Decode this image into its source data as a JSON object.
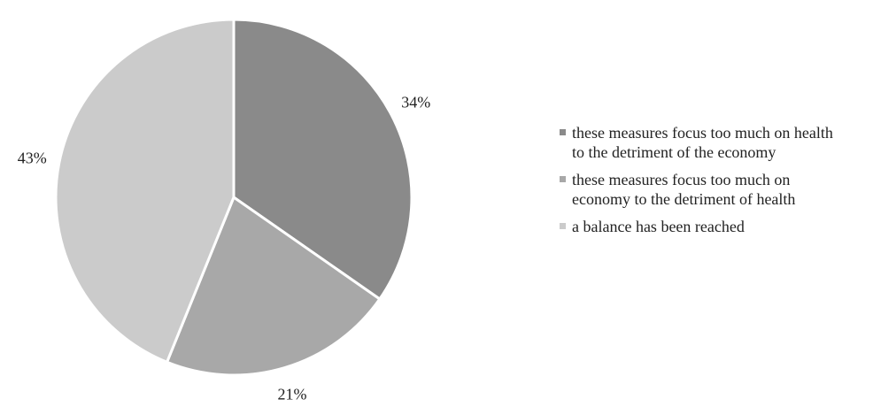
{
  "chart_data": {
    "type": "pie",
    "title": "",
    "slices": [
      {
        "label": "these measures focus too much on health\nto the detriment of the economy",
        "value": 34,
        "value_label": "34%",
        "color": "#8a8a8a"
      },
      {
        "label": "these measures focus too much on\neconomy to the detriment of health",
        "value": 21,
        "value_label": "21%",
        "color": "#a8a8a8"
      },
      {
        "label": "a balance has been reached",
        "value": 43,
        "value_label": "43%",
        "color": "#cbcbcb"
      }
    ],
    "legend_position": "right",
    "start_angle": "12 o'clock",
    "direction": "clockwise"
  }
}
